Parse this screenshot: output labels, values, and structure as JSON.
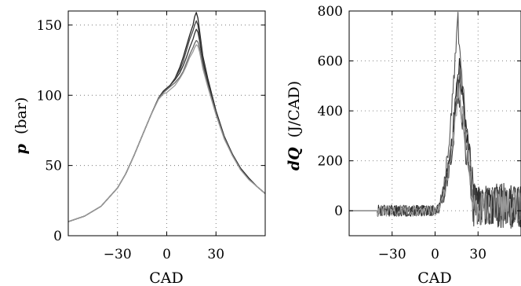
{
  "chart_data": [
    {
      "type": "line",
      "xlabel": "CAD",
      "ylabel_italic": "p",
      "ylabel_unit": "(bar)",
      "xlim": [
        -60,
        60
      ],
      "ylim": [
        0,
        160
      ],
      "xticks": [
        -30,
        0,
        30
      ],
      "yticks": [
        0,
        50,
        100,
        150
      ],
      "xtick_labels": [
        "−30",
        "0",
        "30"
      ],
      "ytick_labels": [
        "0",
        "50",
        "100",
        "150"
      ],
      "grid": true,
      "x": [
        -60,
        -50,
        -40,
        -30,
        -25,
        -20,
        -15,
        -10,
        -5,
        -2,
        0,
        2,
        5,
        8,
        10,
        12,
        14,
        16,
        17,
        18,
        19,
        20,
        22,
        25,
        30,
        35,
        40,
        45,
        50,
        55,
        60
      ],
      "series": [
        {
          "color": "#222222",
          "values": [
            10,
            14,
            21,
            34,
            44,
            57,
            71,
            85,
            98,
            103,
            105,
            107,
            112,
            120,
            127,
            135,
            143,
            150,
            156,
            159,
            155,
            146,
            128,
            112,
            89,
            71,
            58,
            48,
            41,
            35,
            30
          ]
        },
        {
          "color": "#444444",
          "values": [
            10,
            14,
            21,
            34,
            44,
            57,
            71,
            85,
            98,
            103,
            105,
            107,
            112,
            118,
            124,
            132,
            140,
            146,
            150,
            153,
            150,
            142,
            126,
            110,
            88,
            70,
            58,
            48,
            41,
            35,
            30
          ]
        },
        {
          "color": "#333333",
          "values": [
            10,
            14,
            21,
            34,
            44,
            57,
            71,
            85,
            98,
            103,
            105,
            107,
            111,
            116,
            121,
            127,
            134,
            140,
            144,
            147,
            145,
            139,
            124,
            109,
            88,
            70,
            58,
            48,
            41,
            35,
            30
          ]
        },
        {
          "color": "#666666",
          "values": [
            10,
            14,
            21,
            34,
            44,
            57,
            71,
            85,
            98,
            102,
            104,
            106,
            109,
            113,
            117,
            123,
            129,
            134,
            137,
            139,
            138,
            134,
            121,
            107,
            87,
            70,
            57,
            47,
            40,
            35,
            30
          ]
        },
        {
          "color": "#999999",
          "values": [
            10,
            14,
            21,
            34,
            44,
            57,
            71,
            85,
            97,
            101,
            102,
            104,
            107,
            112,
            116,
            121,
            127,
            131,
            134,
            136,
            135,
            131,
            119,
            106,
            86,
            69,
            57,
            47,
            40,
            35,
            30
          ]
        }
      ]
    },
    {
      "type": "line",
      "xlabel": "CAD",
      "ylabel_italic": "dQ",
      "ylabel_unit": "(J/CAD)",
      "xlim": [
        -60,
        60
      ],
      "ylim": [
        -100,
        800
      ],
      "xticks": [
        -30,
        0,
        30
      ],
      "yticks": [
        0,
        200,
        400,
        600,
        800
      ],
      "xtick_labels": [
        "−30",
        "0",
        "30"
      ],
      "ytick_labels": [
        "0",
        "200",
        "400",
        "600",
        "800"
      ],
      "grid": true,
      "peak_values": [
        795,
        610,
        570,
        540,
        510
      ],
      "noise_amplitude_after_peak": 90,
      "series_colors": [
        "#555555",
        "#222222",
        "#333333",
        "#444444",
        "#999999"
      ]
    }
  ]
}
